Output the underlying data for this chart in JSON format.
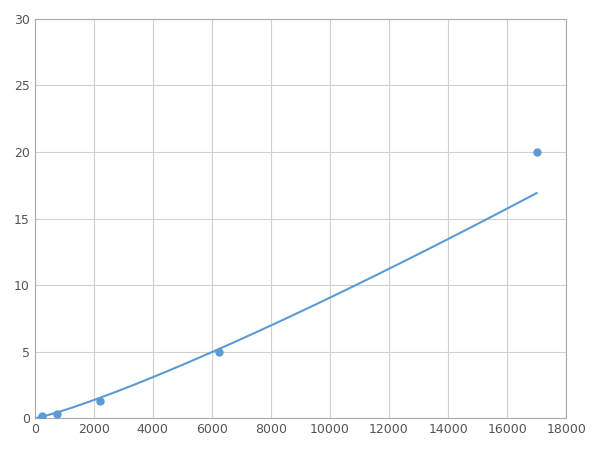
{
  "x_data": [
    250,
    750,
    2200,
    6250,
    17000
  ],
  "y_data": [
    0.15,
    0.35,
    1.3,
    5.0,
    20.0
  ],
  "line_color": "#5b9bd5",
  "marker_color": "#5b9bd5",
  "marker_size": 5,
  "xlim": [
    0,
    18000
  ],
  "ylim": [
    0,
    30
  ],
  "xticks": [
    0,
    2000,
    4000,
    6000,
    8000,
    10000,
    12000,
    14000,
    16000,
    18000
  ],
  "yticks": [
    0,
    5,
    10,
    15,
    20,
    25,
    30
  ],
  "grid_color": "#d0d0d0",
  "background_color": "#ffffff",
  "linewidth": 1.5
}
